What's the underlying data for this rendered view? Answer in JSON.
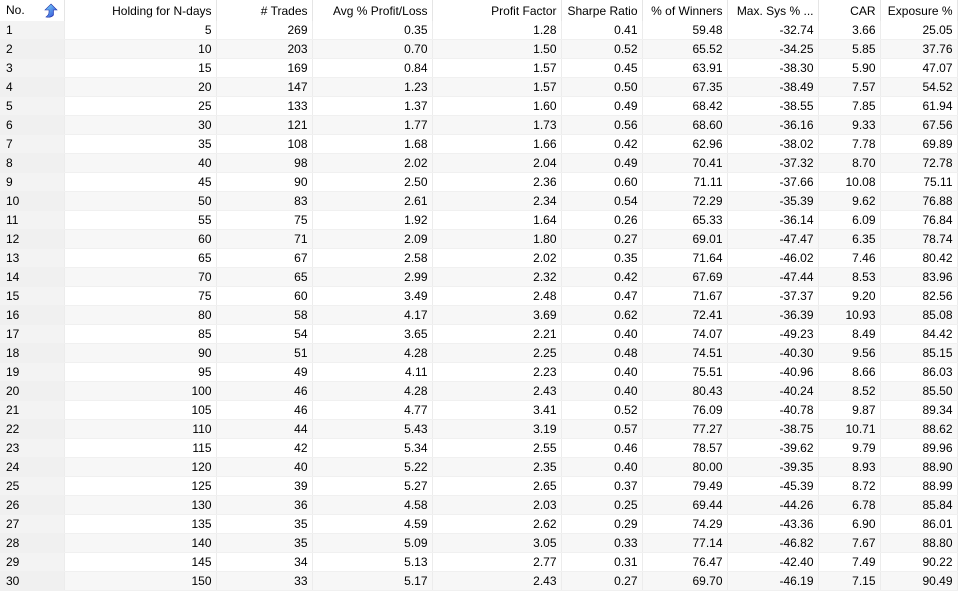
{
  "columns": [
    "No.",
    "Holding for N-days",
    "# Trades",
    "Avg % Profit/Loss",
    "Profit Factor",
    "Sharpe Ratio",
    "% of Winners",
    "Max. Sys % ...",
    "CAR",
    "Exposure %"
  ],
  "sort_icon": "sort-ascending-arrow-icon",
  "accent": "#3a7bd5",
  "rows": [
    [
      "1",
      "5",
      "269",
      "0.35",
      "1.28",
      "0.41",
      "59.48",
      "-32.74",
      "3.66",
      "25.05"
    ],
    [
      "2",
      "10",
      "203",
      "0.70",
      "1.50",
      "0.52",
      "65.52",
      "-34.25",
      "5.85",
      "37.76"
    ],
    [
      "3",
      "15",
      "169",
      "0.84",
      "1.57",
      "0.45",
      "63.91",
      "-38.30",
      "5.90",
      "47.07"
    ],
    [
      "4",
      "20",
      "147",
      "1.23",
      "1.57",
      "0.50",
      "67.35",
      "-38.49",
      "7.57",
      "54.52"
    ],
    [
      "5",
      "25",
      "133",
      "1.37",
      "1.60",
      "0.49",
      "68.42",
      "-38.55",
      "7.85",
      "61.94"
    ],
    [
      "6",
      "30",
      "121",
      "1.77",
      "1.73",
      "0.56",
      "68.60",
      "-36.16",
      "9.33",
      "67.56"
    ],
    [
      "7",
      "35",
      "108",
      "1.68",
      "1.66",
      "0.42",
      "62.96",
      "-38.02",
      "7.78",
      "69.89"
    ],
    [
      "8",
      "40",
      "98",
      "2.02",
      "2.04",
      "0.49",
      "70.41",
      "-37.32",
      "8.70",
      "72.78"
    ],
    [
      "9",
      "45",
      "90",
      "2.50",
      "2.36",
      "0.60",
      "71.11",
      "-37.66",
      "10.08",
      "75.11"
    ],
    [
      "10",
      "50",
      "83",
      "2.61",
      "2.34",
      "0.54",
      "72.29",
      "-35.39",
      "9.62",
      "76.88"
    ],
    [
      "11",
      "55",
      "75",
      "1.92",
      "1.64",
      "0.26",
      "65.33",
      "-36.14",
      "6.09",
      "76.84"
    ],
    [
      "12",
      "60",
      "71",
      "2.09",
      "1.80",
      "0.27",
      "69.01",
      "-47.47",
      "6.35",
      "78.74"
    ],
    [
      "13",
      "65",
      "67",
      "2.58",
      "2.02",
      "0.35",
      "71.64",
      "-46.02",
      "7.46",
      "80.42"
    ],
    [
      "14",
      "70",
      "65",
      "2.99",
      "2.32",
      "0.42",
      "67.69",
      "-47.44",
      "8.53",
      "83.96"
    ],
    [
      "15",
      "75",
      "60",
      "3.49",
      "2.48",
      "0.47",
      "71.67",
      "-37.37",
      "9.20",
      "82.56"
    ],
    [
      "16",
      "80",
      "58",
      "4.17",
      "3.69",
      "0.62",
      "72.41",
      "-36.39",
      "10.93",
      "85.08"
    ],
    [
      "17",
      "85",
      "54",
      "3.65",
      "2.21",
      "0.40",
      "74.07",
      "-49.23",
      "8.49",
      "84.42"
    ],
    [
      "18",
      "90",
      "51",
      "4.28",
      "2.25",
      "0.48",
      "74.51",
      "-40.30",
      "9.56",
      "85.15"
    ],
    [
      "19",
      "95",
      "49",
      "4.11",
      "2.23",
      "0.40",
      "75.51",
      "-40.96",
      "8.66",
      "86.03"
    ],
    [
      "20",
      "100",
      "46",
      "4.28",
      "2.43",
      "0.40",
      "80.43",
      "-40.24",
      "8.52",
      "85.50"
    ],
    [
      "21",
      "105",
      "46",
      "4.77",
      "3.41",
      "0.52",
      "76.09",
      "-40.78",
      "9.87",
      "89.34"
    ],
    [
      "22",
      "110",
      "44",
      "5.43",
      "3.19",
      "0.57",
      "77.27",
      "-38.75",
      "10.71",
      "88.62"
    ],
    [
      "23",
      "115",
      "42",
      "5.34",
      "2.55",
      "0.46",
      "78.57",
      "-39.62",
      "9.79",
      "89.96"
    ],
    [
      "24",
      "120",
      "40",
      "5.22",
      "2.35",
      "0.40",
      "80.00",
      "-39.35",
      "8.93",
      "88.90"
    ],
    [
      "25",
      "125",
      "39",
      "5.27",
      "2.65",
      "0.37",
      "79.49",
      "-45.39",
      "8.72",
      "88.99"
    ],
    [
      "26",
      "130",
      "36",
      "4.58",
      "2.03",
      "0.25",
      "69.44",
      "-44.26",
      "6.78",
      "85.84"
    ],
    [
      "27",
      "135",
      "35",
      "4.59",
      "2.62",
      "0.29",
      "74.29",
      "-43.36",
      "6.90",
      "86.01"
    ],
    [
      "28",
      "140",
      "35",
      "5.09",
      "3.05",
      "0.33",
      "77.14",
      "-46.82",
      "7.67",
      "88.80"
    ],
    [
      "29",
      "145",
      "34",
      "5.13",
      "2.77",
      "0.31",
      "76.47",
      "-42.40",
      "7.49",
      "90.22"
    ],
    [
      "30",
      "150",
      "33",
      "5.17",
      "2.43",
      "0.27",
      "69.70",
      "-46.19",
      "7.15",
      "90.49"
    ]
  ]
}
